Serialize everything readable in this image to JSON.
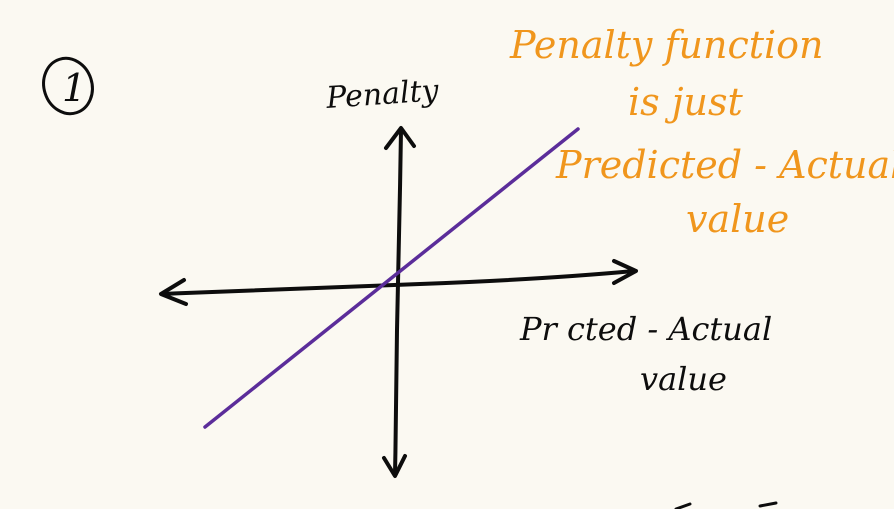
{
  "step_number": "1",
  "y_axis_label": "Penalty",
  "x_axis_label": [
    "Pr  cted - Actual",
    "value"
  ],
  "annotation": [
    "Penalty function",
    "is just",
    "Predicted - Actual",
    "value"
  ],
  "colors": {
    "ink": "#0d0d0d",
    "line": "#5b2d9a",
    "annotation": "#f0961d",
    "paper": "#fbf9f2"
  }
}
